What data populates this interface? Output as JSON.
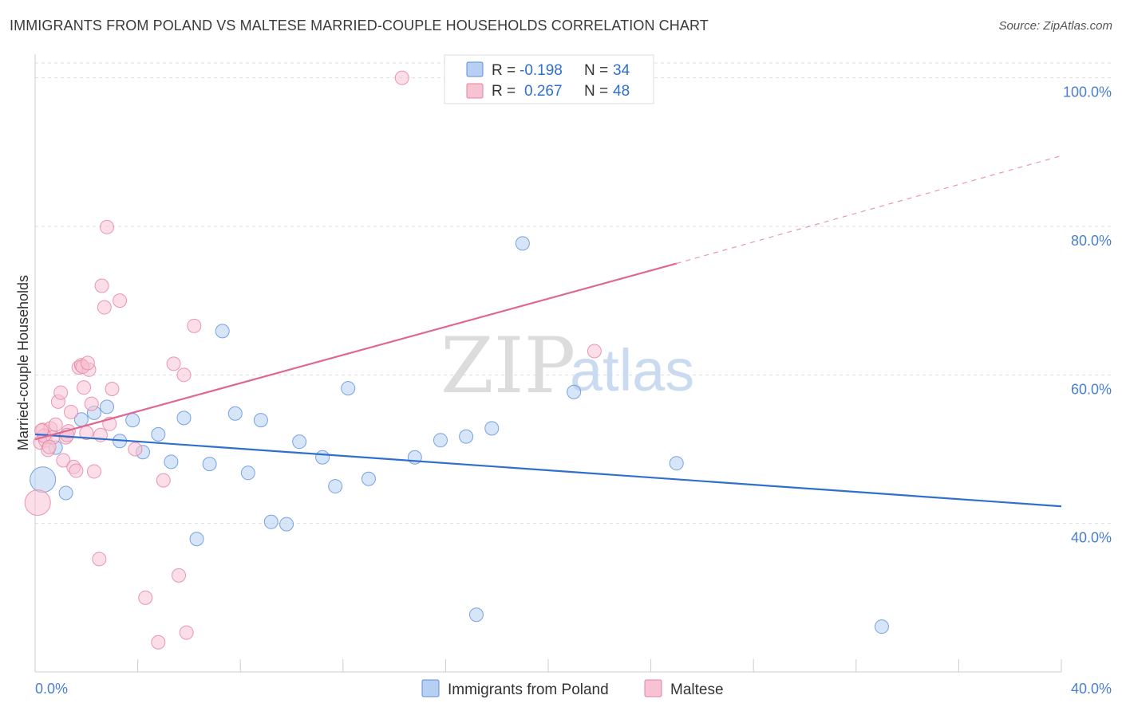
{
  "title": "IMMIGRANTS FROM POLAND VS MALTESE MARRIED-COUPLE HOUSEHOLDS CORRELATION CHART",
  "source": "Source: ZipAtlas.com",
  "watermark": {
    "zip": "ZIP",
    "atlas": "atlas"
  },
  "legend": {
    "r_label": "R =",
    "n_label": "N =",
    "rows": [
      {
        "name": "Immigrants from Poland",
        "r": "-0.198",
        "n": "34"
      },
      {
        "name": "Maltese",
        "r": "0.267",
        "n": "48"
      }
    ]
  },
  "chart_data": {
    "type": "scatter",
    "title": "IMMIGRANTS FROM POLAND VS MALTESE MARRIED-COUPLE HOUSEHOLDS CORRELATION CHART",
    "xlabel": "",
    "ylabel": "Married-couple Households",
    "xlim": [
      0,
      40
    ],
    "ylim": [
      20,
      102
    ],
    "x_tick_labels": [
      "0.0%",
      "40.0%"
    ],
    "y_ticks": [
      40,
      60,
      80,
      100
    ],
    "y_tick_labels": [
      "40.0%",
      "60.0%",
      "80.0%",
      "100.0%"
    ],
    "colors": {
      "poland_fill": "#b7cff3",
      "poland_stroke": "#5b8fd9",
      "poland_line": "#2f6fd0",
      "maltese_fill": "#f7c3d3",
      "maltese_stroke": "#e57fa0",
      "maltese_line": "#e06694",
      "grid": "#dddddd",
      "tick": "#4a7fcf"
    },
    "series": [
      {
        "name": "Immigrants from Poland",
        "trend": {
          "x0": 0,
          "y0": 52.0,
          "x1": 40,
          "y1": 42.3,
          "dashed_to": null
        },
        "points": [
          {
            "x": 0.3,
            "y": 45.9,
            "big": true
          },
          {
            "x": 0.8,
            "y": 50.2
          },
          {
            "x": 1.2,
            "y": 44.1
          },
          {
            "x": 1.8,
            "y": 54.0
          },
          {
            "x": 2.3,
            "y": 54.9
          },
          {
            "x": 2.8,
            "y": 55.7
          },
          {
            "x": 3.3,
            "y": 51.1
          },
          {
            "x": 3.8,
            "y": 53.9
          },
          {
            "x": 4.2,
            "y": 49.6
          },
          {
            "x": 4.8,
            "y": 52.0
          },
          {
            "x": 5.3,
            "y": 48.3
          },
          {
            "x": 5.8,
            "y": 54.2
          },
          {
            "x": 6.8,
            "y": 48.0
          },
          {
            "x": 7.3,
            "y": 65.9
          },
          {
            "x": 7.8,
            "y": 54.8
          },
          {
            "x": 8.3,
            "y": 46.8
          },
          {
            "x": 8.8,
            "y": 53.9
          },
          {
            "x": 9.2,
            "y": 40.2
          },
          {
            "x": 9.8,
            "y": 39.9
          },
          {
            "x": 10.3,
            "y": 51.0
          },
          {
            "x": 11.2,
            "y": 48.9
          },
          {
            "x": 11.7,
            "y": 45.0
          },
          {
            "x": 12.2,
            "y": 58.2
          },
          {
            "x": 13.0,
            "y": 46.0
          },
          {
            "x": 14.8,
            "y": 48.9
          },
          {
            "x": 15.8,
            "y": 51.2
          },
          {
            "x": 16.8,
            "y": 51.7
          },
          {
            "x": 17.8,
            "y": 52.8
          },
          {
            "x": 19.0,
            "y": 77.7
          },
          {
            "x": 21.0,
            "y": 57.7
          },
          {
            "x": 25.0,
            "y": 48.1
          },
          {
            "x": 6.3,
            "y": 37.9
          },
          {
            "x": 17.2,
            "y": 27.7
          },
          {
            "x": 33.0,
            "y": 26.1
          }
        ]
      },
      {
        "name": "Maltese",
        "trend": {
          "x0": 0,
          "y0": 51.3,
          "x1": 25.0,
          "y1": 75.0,
          "dashed_to": {
            "x": 40,
            "y": 89.5
          }
        },
        "points": [
          {
            "x": 0.1,
            "y": 42.8,
            "big": true
          },
          {
            "x": 0.2,
            "y": 50.9
          },
          {
            "x": 0.3,
            "y": 52.6
          },
          {
            "x": 0.4,
            "y": 51.2
          },
          {
            "x": 0.5,
            "y": 49.9
          },
          {
            "x": 0.6,
            "y": 52.8
          },
          {
            "x": 0.7,
            "y": 51.6
          },
          {
            "x": 0.8,
            "y": 53.3
          },
          {
            "x": 0.9,
            "y": 56.4
          },
          {
            "x": 1.0,
            "y": 57.6
          },
          {
            "x": 1.1,
            "y": 48.5
          },
          {
            "x": 1.2,
            "y": 51.6
          },
          {
            "x": 1.3,
            "y": 52.4
          },
          {
            "x": 1.4,
            "y": 55.0
          },
          {
            "x": 1.5,
            "y": 47.6
          },
          {
            "x": 1.6,
            "y": 47.1
          },
          {
            "x": 1.7,
            "y": 61.0
          },
          {
            "x": 1.8,
            "y": 61.3
          },
          {
            "x": 1.9,
            "y": 58.3
          },
          {
            "x": 2.0,
            "y": 52.2
          },
          {
            "x": 2.1,
            "y": 60.7
          },
          {
            "x": 2.2,
            "y": 56.1
          },
          {
            "x": 2.3,
            "y": 47.0
          },
          {
            "x": 2.5,
            "y": 35.2
          },
          {
            "x": 2.6,
            "y": 72.0
          },
          {
            "x": 2.7,
            "y": 69.1
          },
          {
            "x": 2.8,
            "y": 79.9
          },
          {
            "x": 2.9,
            "y": 53.4
          },
          {
            "x": 3.0,
            "y": 58.1
          },
          {
            "x": 3.3,
            "y": 70.0
          },
          {
            "x": 3.9,
            "y": 50.0
          },
          {
            "x": 4.3,
            "y": 30.0
          },
          {
            "x": 4.8,
            "y": 24.0
          },
          {
            "x": 5.0,
            "y": 45.8
          },
          {
            "x": 5.4,
            "y": 61.5
          },
          {
            "x": 5.6,
            "y": 33.0
          },
          {
            "x": 5.8,
            "y": 60.0
          },
          {
            "x": 5.9,
            "y": 25.3
          },
          {
            "x": 6.2,
            "y": 66.6
          },
          {
            "x": 14.3,
            "y": 100.0
          },
          {
            "x": 21.8,
            "y": 63.2
          },
          {
            "x": 0.35,
            "y": 51.8
          },
          {
            "x": 0.55,
            "y": 50.3
          },
          {
            "x": 1.25,
            "y": 51.9
          },
          {
            "x": 1.85,
            "y": 61.1
          },
          {
            "x": 2.05,
            "y": 61.6
          },
          {
            "x": 2.55,
            "y": 51.9
          },
          {
            "x": 0.25,
            "y": 52.5
          }
        ]
      }
    ]
  }
}
